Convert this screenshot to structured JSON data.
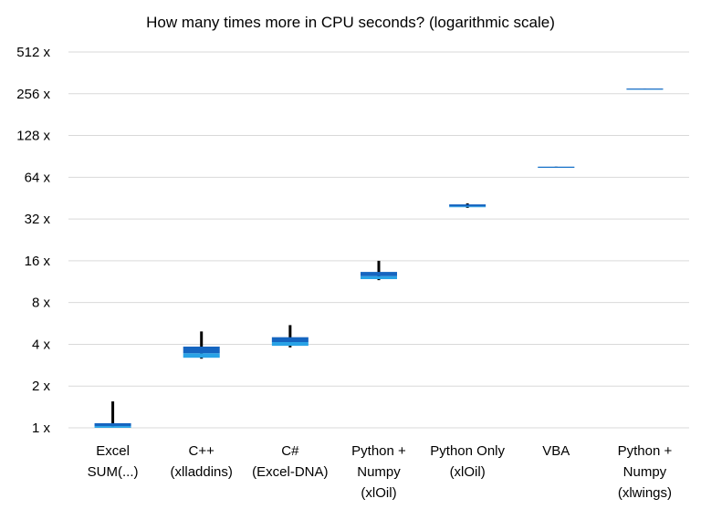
{
  "chart_data": {
    "type": "box",
    "title": "How many times more in CPU seconds? (logarithmic scale)",
    "y_scale": "log2",
    "ylim": [
      1,
      512
    ],
    "yticks": [
      1,
      2,
      4,
      8,
      16,
      32,
      64,
      128,
      256,
      512
    ],
    "ytick_labels": [
      "1 x",
      "2 x",
      "4 x",
      "8 x",
      "16 x",
      "32 x",
      "64 x",
      "128 x",
      "256 x",
      "512 x"
    ],
    "grid": true,
    "colors": {
      "upper_box": "#1565c0",
      "lower_box": "#29a3e6",
      "whisker": "#000000",
      "grid": "#d9d9d9"
    },
    "categories": [
      {
        "label_lines": [
          "Excel",
          "SUM(...)"
        ],
        "min": 1.0,
        "q1": 1.0,
        "median": 1.03,
        "q3": 1.08,
        "max": 1.55
      },
      {
        "label_lines": [
          "C++",
          "(xlladdins)"
        ],
        "min": 3.15,
        "q1": 3.2,
        "median": 3.45,
        "q3": 3.85,
        "max": 4.95
      },
      {
        "label_lines": [
          "C#",
          "(Excel-DNA)"
        ],
        "min": 3.8,
        "q1": 3.9,
        "median": 4.15,
        "q3": 4.5,
        "max": 5.5
      },
      {
        "label_lines": [
          "Python +",
          "Numpy",
          "(xlOil)"
        ],
        "min": 11.6,
        "q1": 11.8,
        "median": 12.4,
        "q3": 13.3,
        "max": 16.0
      },
      {
        "label_lines": [
          "Python Only",
          "(xlOil)"
        ],
        "min": 38.5,
        "q1": 39.0,
        "median": 39.5,
        "q3": 40.8,
        "max": 41.5
      },
      {
        "label_lines": [
          "VBA"
        ],
        "min": 76.0,
        "q1": 76.0,
        "median": 76.0,
        "q3": 76.3,
        "max": 76.3
      },
      {
        "label_lines": [
          "Python +",
          "Numpy",
          "(xlwings)"
        ],
        "min": 278.0,
        "q1": 278.0,
        "median": 278.0,
        "q3": 279.0,
        "max": 279.0
      }
    ]
  }
}
